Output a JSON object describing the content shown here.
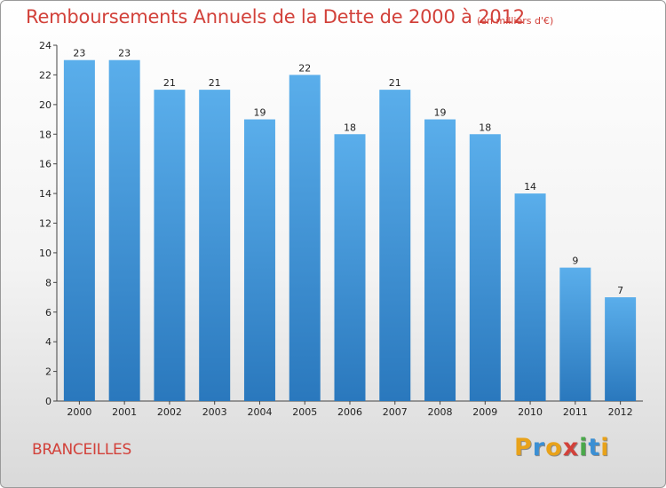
{
  "header": {
    "title": "Remboursements Annuels de la Dette de 2000 à 2012",
    "unit": "(en milliers d'€)"
  },
  "footer": {
    "commune": "BRANCEILLES",
    "logo": {
      "letters": [
        "P",
        "r",
        "o",
        "x",
        "i",
        "t",
        "i"
      ],
      "colors": [
        "#e8a21a",
        "#3a8fd4",
        "#e8a21a",
        "#d2413a",
        "#4aa84a",
        "#3a8fd4",
        "#e8a21a"
      ]
    }
  },
  "chart_data": {
    "type": "bar",
    "categories": [
      "2000",
      "2001",
      "2002",
      "2003",
      "2004",
      "2005",
      "2006",
      "2007",
      "2008",
      "2009",
      "2010",
      "2011",
      "2012"
    ],
    "values": [
      23,
      23,
      21,
      21,
      19,
      22,
      18,
      21,
      19,
      18,
      14,
      9,
      7
    ],
    "title": "Remboursements Annuels de la Dette de 2000 à 2012",
    "xlabel": "",
    "ylabel": "",
    "ylim": [
      0,
      24
    ],
    "yticks": [
      0,
      2,
      4,
      6,
      8,
      10,
      12,
      14,
      16,
      18,
      20,
      22,
      24
    ],
    "grid": false,
    "bar_color_top": "#5aaeeb",
    "bar_color_bottom": "#2a78bd"
  }
}
